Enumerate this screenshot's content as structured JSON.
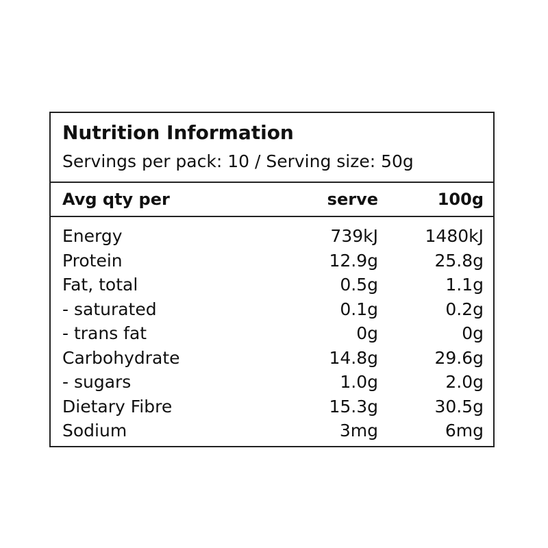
{
  "header": {
    "title": "Nutrition Information",
    "subtitle": "Servings per pack: 10 / Serving size: 50g"
  },
  "table": {
    "columns": [
      "Avg qty per",
      "serve",
      "100g"
    ],
    "rows": [
      [
        "Energy",
        "739kJ",
        "1480kJ"
      ],
      [
        "Protein",
        "12.9g",
        "25.8g"
      ],
      [
        "Fat, total",
        "0.5g",
        "1.1g"
      ],
      [
        "- saturated",
        "0.1g",
        "0.2g"
      ],
      [
        "- trans fat",
        "0g",
        "0g"
      ],
      [
        "Carbohydrate",
        "14.8g",
        "29.6g"
      ],
      [
        "- sugars",
        "1.0g",
        "2.0g"
      ],
      [
        "Dietary Fibre",
        "15.3g",
        "30.5g"
      ],
      [
        "Sodium",
        "3mg",
        "6mg"
      ]
    ]
  }
}
